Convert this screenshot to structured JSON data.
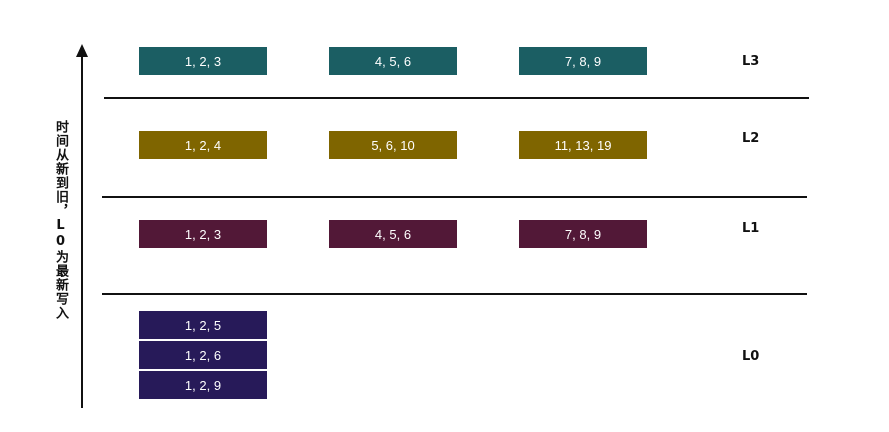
{
  "axis": {
    "title": "时间从新到旧，L0为最新写入"
  },
  "colors": {
    "L3": "#1b5e63",
    "L2": "#7f6500",
    "L1": "#521837",
    "L0": "#271a59"
  },
  "levels": {
    "L3": {
      "label": "L3",
      "blocks": [
        "1, 2, 3",
        "4, 5, 6",
        "7, 8, 9"
      ]
    },
    "L2": {
      "label": "L2",
      "blocks": [
        "1, 2, 4",
        "5, 6, 10",
        "11, 13, 19"
      ]
    },
    "L1": {
      "label": "L1",
      "blocks": [
        "1, 2, 3",
        "4, 5, 6",
        "7, 8, 9"
      ]
    },
    "L0": {
      "label": "L0",
      "blocks": [
        "1, 2, 5",
        "1, 2, 6",
        "1, 2, 9"
      ]
    }
  }
}
